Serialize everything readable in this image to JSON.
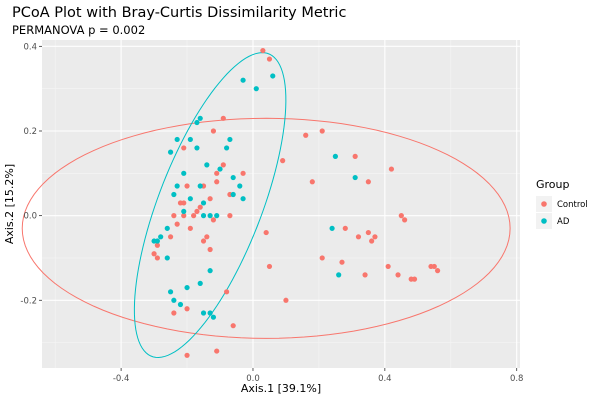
{
  "chart_data": {
    "type": "scatter",
    "title": "PCoA Plot with Bray-Curtis Dissimilarity Metric",
    "subtitle": "PERMANOVA p = 0.002",
    "xlabel": "Axis.1   [39.1%]",
    "ylabel": "Axis.2   [15.2%]",
    "xlim": [
      -0.64,
      0.81
    ],
    "ylim": [
      -0.36,
      0.415
    ],
    "x_ticks": [
      -0.4,
      0.0,
      0.4,
      0.8
    ],
    "x_tick_labels": [
      "-0.4",
      "0.0",
      "0.4",
      "0.8"
    ],
    "y_ticks": [
      -0.2,
      0.0,
      0.2,
      0.4
    ],
    "y_tick_labels": [
      "-0.2",
      "0.0",
      "0.2",
      "0.4"
    ],
    "grid": true,
    "legend": {
      "title": "Group",
      "placement": "right",
      "entries": [
        {
          "label": "Control",
          "color": "#F8766D"
        },
        {
          "label": "AD",
          "color": "#00BFC4"
        }
      ]
    },
    "ellipses": [
      {
        "group": "Control",
        "color": "#F8766D",
        "center": [
          0.04,
          -0.03
        ],
        "semi_axes": [
          0.74,
          0.26
        ],
        "angle_deg": 0
      },
      {
        "group": "AD",
        "color": "#00BFC4",
        "center": [
          -0.13,
          0.025
        ],
        "semi_axes": [
          0.4,
          0.15
        ],
        "angle_deg": 62
      }
    ],
    "series": [
      {
        "name": "Control",
        "color": "#F8766D",
        "points": [
          [
            0.03,
            0.39
          ],
          [
            0.05,
            0.37
          ],
          [
            -0.09,
            0.23
          ],
          [
            -0.12,
            0.2
          ],
          [
            -0.21,
            0.16
          ],
          [
            -0.09,
            0.12
          ],
          [
            -0.11,
            0.1
          ],
          [
            -0.03,
            0.1
          ],
          [
            -0.11,
            0.08
          ],
          [
            -0.2,
            0.07
          ],
          [
            -0.15,
            0.07
          ],
          [
            -0.07,
            0.05
          ],
          [
            -0.22,
            0.03
          ],
          [
            -0.21,
            0.03
          ],
          [
            -0.16,
            0.02
          ],
          [
            -0.13,
            0.04
          ],
          [
            -0.17,
            0.01
          ],
          [
            -0.24,
            0.0
          ],
          [
            -0.21,
            0.0
          ],
          [
            -0.18,
            0.0
          ],
          [
            -0.07,
            0.0
          ],
          [
            -0.12,
            -0.01
          ],
          [
            -0.23,
            -0.02
          ],
          [
            -0.19,
            -0.03
          ],
          [
            -0.25,
            -0.05
          ],
          [
            -0.29,
            -0.07
          ],
          [
            -0.3,
            -0.09
          ],
          [
            -0.29,
            -0.1
          ],
          [
            -0.14,
            -0.05
          ],
          [
            -0.15,
            -0.06
          ],
          [
            -0.13,
            -0.08
          ],
          [
            0.04,
            -0.04
          ],
          [
            0.05,
            -0.12
          ],
          [
            0.1,
            -0.2
          ],
          [
            -0.08,
            -0.18
          ],
          [
            -0.2,
            -0.22
          ],
          [
            -0.24,
            -0.23
          ],
          [
            -0.06,
            -0.26
          ],
          [
            -0.2,
            -0.33
          ],
          [
            -0.11,
            -0.32
          ],
          [
            0.09,
            0.13
          ],
          [
            0.16,
            0.19
          ],
          [
            0.21,
            0.2
          ],
          [
            0.18,
            0.08
          ],
          [
            0.31,
            0.14
          ],
          [
            0.35,
            0.08
          ],
          [
            0.42,
            0.11
          ],
          [
            0.45,
            0.0
          ],
          [
            0.46,
            -0.01
          ],
          [
            0.28,
            -0.03
          ],
          [
            0.32,
            -0.05
          ],
          [
            0.35,
            -0.04
          ],
          [
            0.37,
            -0.05
          ],
          [
            0.36,
            -0.06
          ],
          [
            0.21,
            -0.1
          ],
          [
            0.27,
            -0.11
          ],
          [
            0.34,
            -0.14
          ],
          [
            0.41,
            -0.12
          ],
          [
            0.44,
            -0.14
          ],
          [
            0.48,
            -0.15
          ],
          [
            0.49,
            -0.15
          ],
          [
            0.54,
            -0.12
          ],
          [
            0.55,
            -0.12
          ],
          [
            0.56,
            -0.13
          ]
        ]
      },
      {
        "name": "AD",
        "color": "#00BFC4",
        "points": [
          [
            0.06,
            0.33
          ],
          [
            -0.03,
            0.32
          ],
          [
            0.01,
            0.3
          ],
          [
            -0.16,
            0.23
          ],
          [
            -0.17,
            0.22
          ],
          [
            -0.23,
            0.18
          ],
          [
            -0.19,
            0.18
          ],
          [
            -0.07,
            0.18
          ],
          [
            -0.08,
            0.16
          ],
          [
            -0.17,
            0.16
          ],
          [
            -0.25,
            0.15
          ],
          [
            -0.14,
            0.12
          ],
          [
            -0.1,
            0.11
          ],
          [
            -0.21,
            0.1
          ],
          [
            -0.06,
            0.09
          ],
          [
            -0.23,
            0.07
          ],
          [
            -0.24,
            0.05
          ],
          [
            -0.16,
            0.07
          ],
          [
            -0.04,
            0.07
          ],
          [
            -0.06,
            0.05
          ],
          [
            -0.03,
            0.04
          ],
          [
            -0.19,
            0.04
          ],
          [
            -0.21,
            0.01
          ],
          [
            -0.15,
            0.03
          ],
          [
            -0.15,
            0.0
          ],
          [
            -0.13,
            0.0
          ],
          [
            -0.11,
            0.0
          ],
          [
            -0.26,
            -0.03
          ],
          [
            -0.28,
            -0.05
          ],
          [
            -0.3,
            -0.06
          ],
          [
            -0.29,
            -0.06
          ],
          [
            -0.26,
            -0.1
          ],
          [
            -0.13,
            -0.13
          ],
          [
            -0.2,
            -0.17
          ],
          [
            -0.24,
            -0.2
          ],
          [
            -0.16,
            -0.16
          ],
          [
            -0.25,
            -0.18
          ],
          [
            -0.22,
            -0.21
          ],
          [
            -0.15,
            -0.23
          ],
          [
            -0.13,
            -0.23
          ],
          [
            -0.12,
            -0.24
          ],
          [
            0.25,
            0.14
          ],
          [
            0.31,
            0.09
          ],
          [
            0.24,
            -0.03
          ],
          [
            0.26,
            -0.14
          ]
        ]
      }
    ]
  }
}
